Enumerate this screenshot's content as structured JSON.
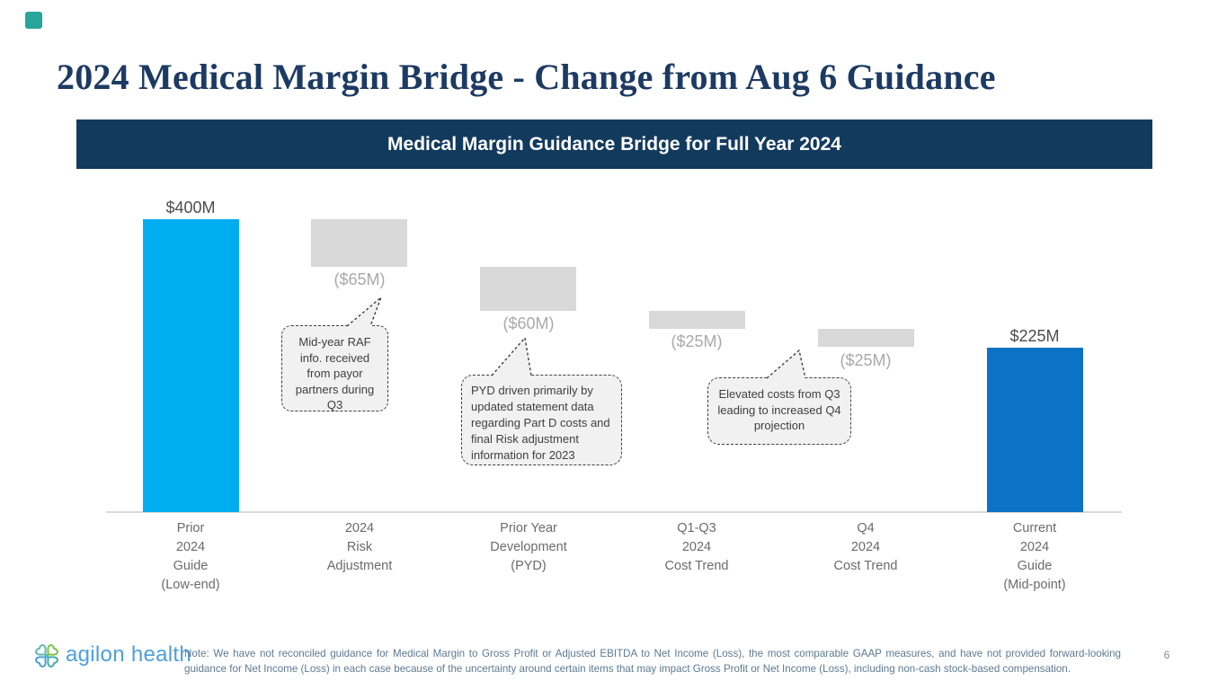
{
  "slide": {
    "title": "2024 Medical Margin Bridge - Change from Aug 6 Guidance",
    "banner": "Medical Margin Guidance Bridge for Full Year 2024",
    "note": "Note: We have not reconciled guidance for Medical Margin to Gross Profit or Adjusted EBITDA to Net Income (Loss), the most comparable GAAP measures, and have not provided forward-looking guidance for Net Income (Loss) in each case because of the uncertainty around certain items that may impact Gross Profit or Net Income (Loss), including non-cash stock-based compensation.",
    "page_number": "6",
    "logo_text": "agilon health"
  },
  "colors": {
    "title_navy": "#1c3a63",
    "banner_navy": "#123a5d",
    "start_bar_cyan": "#00aeef",
    "end_bar_blue": "#0a73c5",
    "delta_bar_gray": "#d9d9d9",
    "positive_label_gray": "#4d4d4d",
    "negative_label_gray": "#a9a9a9",
    "note_blue_gray": "#5d7a93",
    "logo_blue": "#4da0dc",
    "logo_green": "#7dc242",
    "logo_teal": "#3fafa5",
    "accent_square_teal": "#26a69a"
  },
  "chart_data": {
    "type": "bar",
    "subtype": "waterfall",
    "title": "Medical Margin Guidance Bridge for Full Year 2024",
    "unit": "$M",
    "categories": [
      "Prior\n2024\nGuide\n(Low-end)",
      "2024\nRisk\nAdjustment",
      "Prior Year\nDevelopment\n(PYD)",
      "Q1-Q3\n2024\nCost Trend",
      "Q4\n2024\nCost Trend",
      "Current\n2024\nGuide\n(Mid-point)"
    ],
    "values": [
      400,
      -65,
      -60,
      -25,
      -25,
      225
    ],
    "bar_kinds": [
      "total",
      "delta",
      "delta",
      "delta",
      "delta",
      "total"
    ],
    "value_labels": [
      "$400M",
      "($65M)",
      "($60M)",
      "($25M)",
      "($25M)",
      "$225M"
    ],
    "bar_colors": [
      "#00aeef",
      "#d9d9d9",
      "#d9d9d9",
      "#d9d9d9",
      "#d9d9d9",
      "#0a73c5"
    ],
    "ylim": [
      0,
      400
    ],
    "axis": "none",
    "legend": "none",
    "annotations": [
      {
        "text": "Mid-year RAF info. received from payor partners during Q3",
        "points_to": "2024 Risk Adjustment"
      },
      {
        "text": "PYD driven primarily by updated statement data regarding Part D costs and final Risk adjustment information for 2023",
        "points_to": "Prior Year Development (PYD)"
      },
      {
        "text": "Elevated costs from Q3 leading to increased Q4 projection",
        "points_to": "Q4 2024 Cost Trend"
      }
    ]
  }
}
